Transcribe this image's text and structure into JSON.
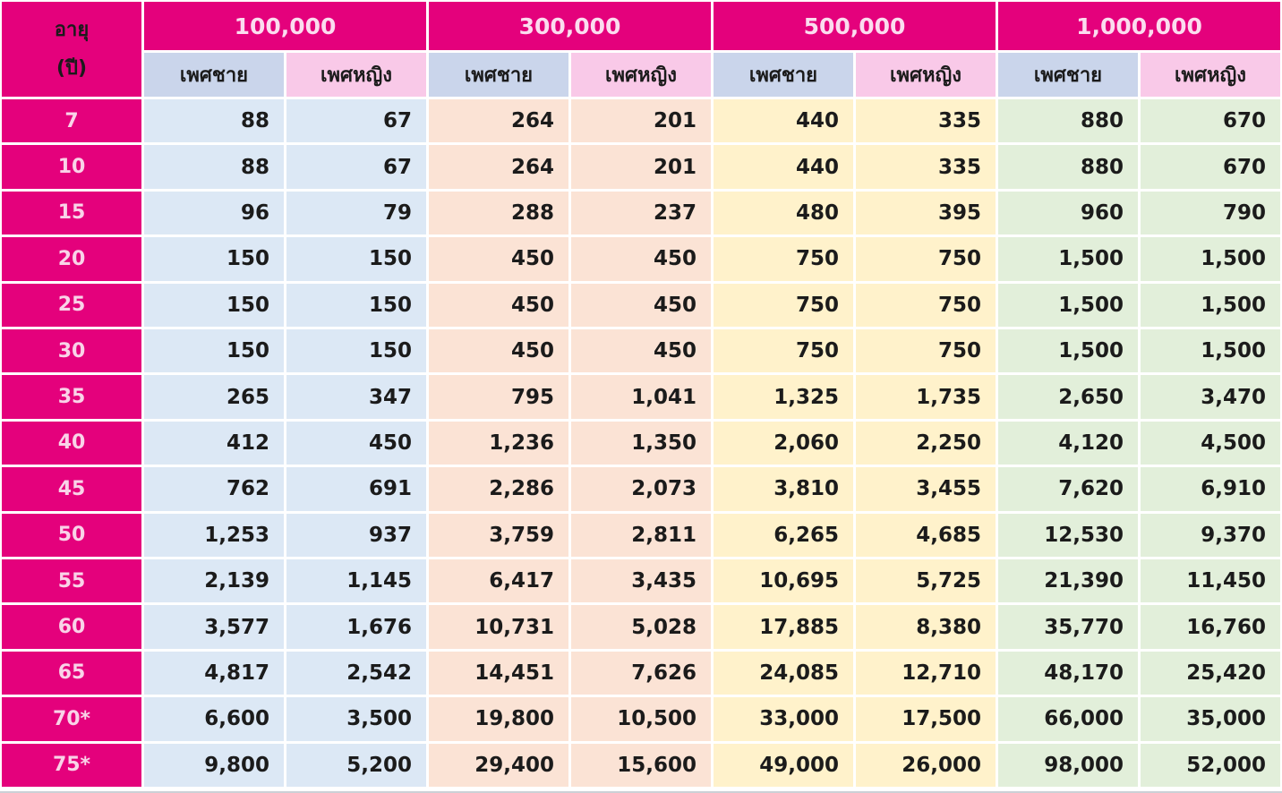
{
  "colors": {
    "magenta": "#e4017c",
    "header_text": "#fbdcef",
    "age_text": "#f9d3e8",
    "dark_text": "#1b1b1b",
    "male_header_bg": "#cad5eb",
    "female_header_bg": "#f9c9e8",
    "grid_line": "#ffffff"
  },
  "table": {
    "age_header": {
      "line1": "อายุ",
      "line2": "(ปี)"
    },
    "male_label": "เพศชาย",
    "female_label": "เพศหญิง",
    "groups": [
      {
        "label": "100,000",
        "cell_bg": "#dce8f5"
      },
      {
        "label": "300,000",
        "cell_bg": "#fbe3d5"
      },
      {
        "label": "500,000",
        "cell_bg": "#fff2cb"
      },
      {
        "label": "1,000,000",
        "cell_bg": "#e2efda"
      }
    ]
  },
  "chart_data": {
    "type": "table",
    "title": "",
    "columns": [
      "อายุ (ปี)",
      "100,000 เพศชาย",
      "100,000 เพศหญิง",
      "300,000 เพศชาย",
      "300,000 เพศหญิง",
      "500,000 เพศชาย",
      "500,000 เพศหญิง",
      "1,000,000 เพศชาย",
      "1,000,000 เพศหญิง"
    ],
    "rows": [
      {
        "age": "7",
        "values": [
          88,
          67,
          264,
          201,
          440,
          335,
          880,
          670
        ]
      },
      {
        "age": "10",
        "values": [
          88,
          67,
          264,
          201,
          440,
          335,
          880,
          670
        ]
      },
      {
        "age": "15",
        "values": [
          96,
          79,
          288,
          237,
          480,
          395,
          960,
          790
        ]
      },
      {
        "age": "20",
        "values": [
          150,
          150,
          450,
          450,
          750,
          750,
          1500,
          1500
        ]
      },
      {
        "age": "25",
        "values": [
          150,
          150,
          450,
          450,
          750,
          750,
          1500,
          1500
        ]
      },
      {
        "age": "30",
        "values": [
          150,
          150,
          450,
          450,
          750,
          750,
          1500,
          1500
        ]
      },
      {
        "age": "35",
        "values": [
          265,
          347,
          795,
          1041,
          1325,
          1735,
          2650,
          3470
        ]
      },
      {
        "age": "40",
        "values": [
          412,
          450,
          1236,
          1350,
          2060,
          2250,
          4120,
          4500
        ]
      },
      {
        "age": "45",
        "values": [
          762,
          691,
          2286,
          2073,
          3810,
          3455,
          7620,
          6910
        ]
      },
      {
        "age": "50",
        "values": [
          1253,
          937,
          3759,
          2811,
          6265,
          4685,
          12530,
          9370
        ]
      },
      {
        "age": "55",
        "values": [
          2139,
          1145,
          6417,
          3435,
          10695,
          5725,
          21390,
          11450
        ]
      },
      {
        "age": "60",
        "values": [
          3577,
          1676,
          10731,
          5028,
          17885,
          8380,
          35770,
          16760
        ]
      },
      {
        "age": "65",
        "values": [
          4817,
          2542,
          14451,
          7626,
          24085,
          12710,
          48170,
          25420
        ]
      },
      {
        "age": "70*",
        "values": [
          6600,
          3500,
          19800,
          10500,
          33000,
          17500,
          66000,
          35000
        ]
      },
      {
        "age": "75*",
        "values": [
          9800,
          5200,
          29400,
          15600,
          49000,
          26000,
          98000,
          52000
        ]
      }
    ]
  }
}
